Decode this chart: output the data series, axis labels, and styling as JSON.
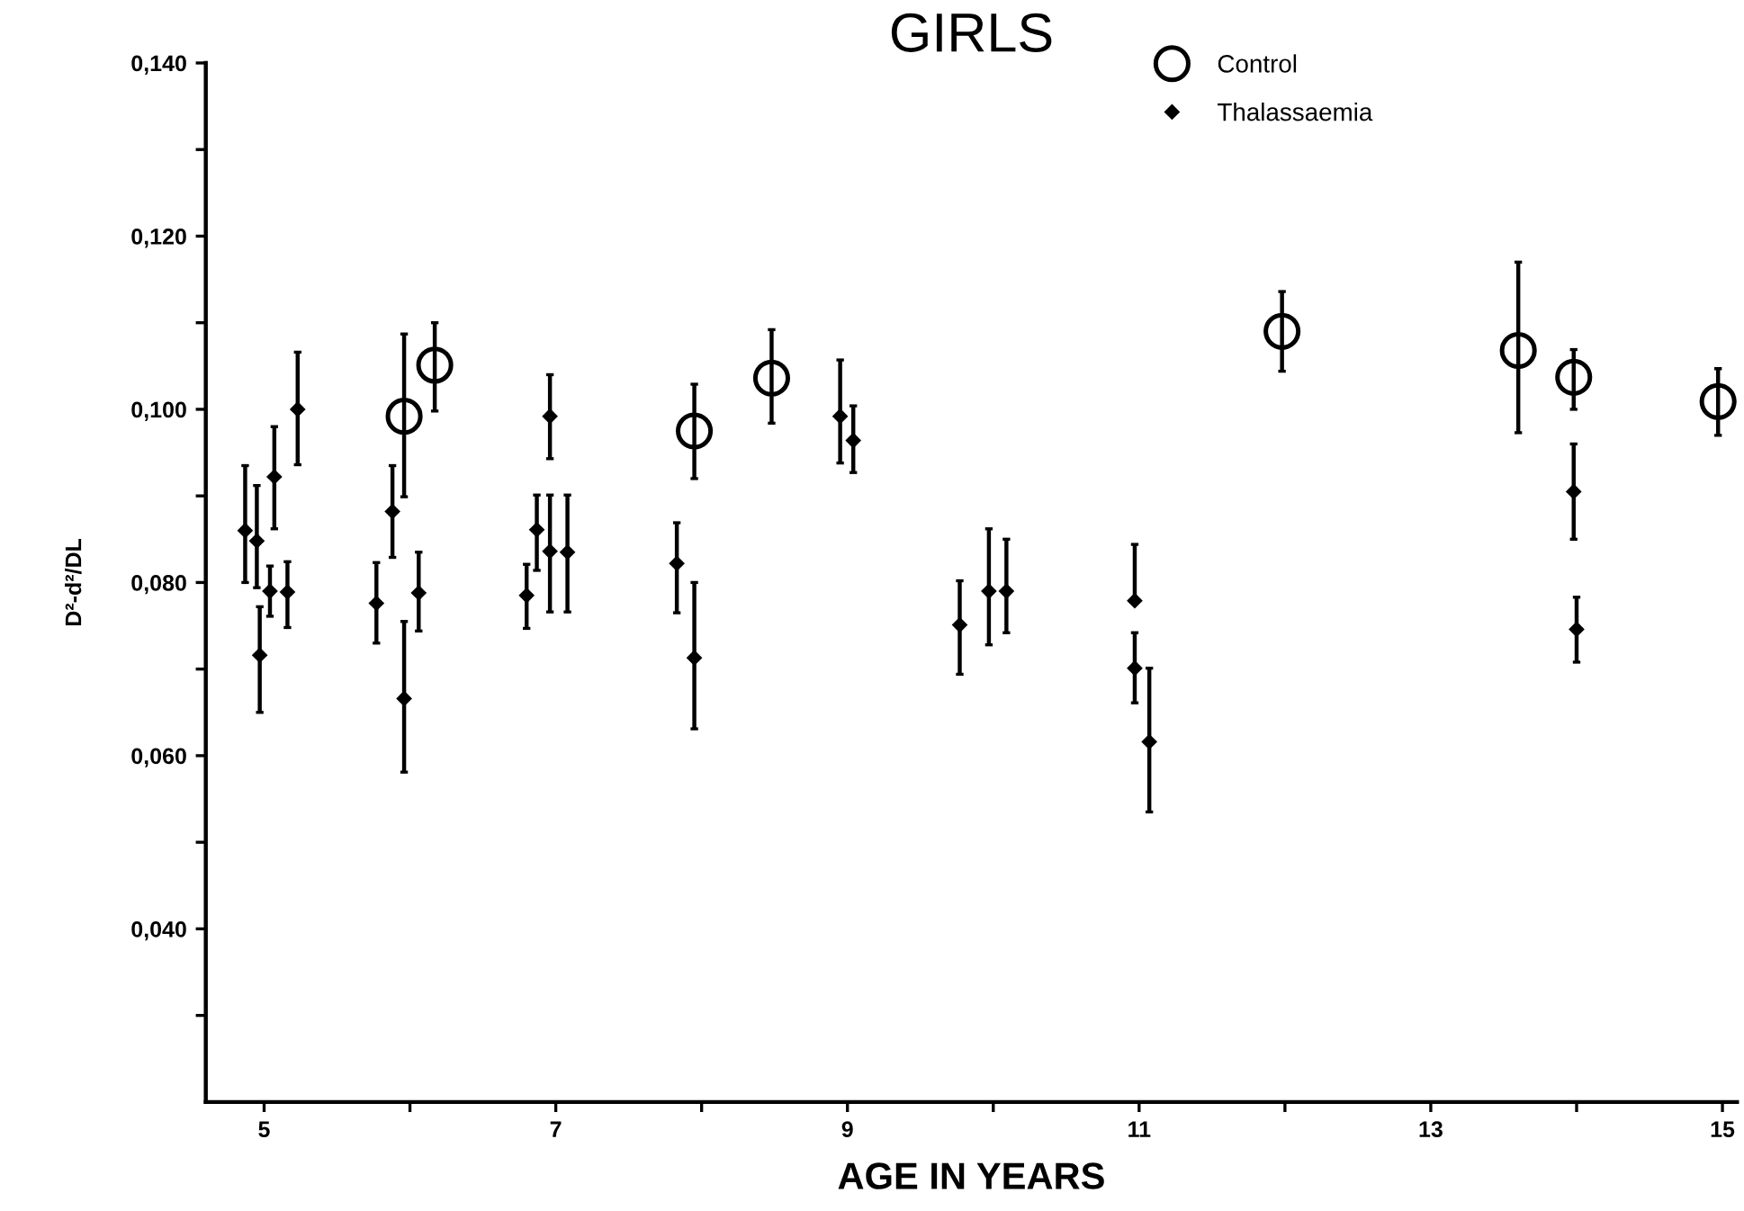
{
  "chart_data": {
    "type": "scatter",
    "title": "GIRLS",
    "xlabel": "AGE IN YEARS",
    "ylabel": "D²-d²/DL",
    "xlim": [
      4.6,
      15.1
    ],
    "ylim": [
      0.02,
      0.14
    ],
    "xticks": [
      5,
      {
        "value": 6,
        "label": null
      },
      7,
      {
        "value": 8,
        "label": null
      },
      9,
      {
        "value": 10,
        "label": null
      },
      11,
      {
        "value": 12,
        "label": null
      },
      13,
      {
        "value": 14,
        "label": null
      },
      15
    ],
    "yticks": [
      {
        "value": 0.03,
        "label": null
      },
      {
        "value": 0.04,
        "label": "0,040"
      },
      {
        "value": 0.05,
        "label": null
      },
      {
        "value": 0.06,
        "label": "0,060"
      },
      {
        "value": 0.07,
        "label": null
      },
      {
        "value": 0.08,
        "label": "0,080"
      },
      {
        "value": 0.09,
        "label": null
      },
      {
        "value": 0.1,
        "label": "0,100"
      },
      {
        "value": 0.11,
        "label": null
      },
      {
        "value": 0.12,
        "label": "0,120"
      },
      {
        "value": 0.13,
        "label": null
      },
      {
        "value": 0.14,
        "label": "0,140"
      }
    ],
    "grid": false,
    "legend": "top right",
    "series": [
      {
        "name": "Control",
        "color": "#000000",
        "marker": "circle",
        "x": [
          5.96,
          6.17,
          7.95,
          8.48,
          11.98,
          13.6,
          13.98,
          14.97
        ],
        "values": [
          0.0992,
          0.1051,
          0.0975,
          0.1036,
          0.109,
          0.1068,
          0.1037,
          0.1009
        ],
        "errors": [
          [
            0.0899,
            0.1087
          ],
          [
            0.0998,
            0.11
          ],
          [
            0.092,
            0.1029
          ],
          [
            0.0984,
            0.1092
          ],
          [
            0.1044,
            0.1136
          ],
          [
            0.0973,
            0.117
          ],
          [
            0.1,
            0.1069
          ],
          [
            0.097,
            0.1047
          ]
        ]
      },
      {
        "name": "Thalassaemia",
        "color": "#000000",
        "marker": "diamond",
        "x": [
          4.87,
          4.95,
          4.97,
          5.04,
          5.07,
          5.16,
          5.23,
          5.77,
          5.88,
          5.96,
          6.06,
          6.8,
          6.87,
          6.96,
          6.96,
          7.08,
          7.83,
          7.95,
          8.95,
          9.04,
          9.77,
          9.97,
          10.09,
          10.97,
          10.97,
          11.07,
          13.98,
          14.0
        ],
        "values": [
          0.086,
          0.0848,
          0.0716,
          0.079,
          0.0922,
          0.0789,
          0.1,
          0.0776,
          0.0882,
          0.0666,
          0.0788,
          0.0785,
          0.0861,
          0.0992,
          0.0836,
          0.0835,
          0.0822,
          0.0713,
          0.0992,
          0.0964,
          0.0751,
          0.079,
          0.079,
          0.0779,
          0.0701,
          0.0616,
          0.0905,
          0.0746
        ],
        "errors": [
          [
            0.08,
            0.0935
          ],
          [
            0.0794,
            0.0912
          ],
          [
            0.065,
            0.0772
          ],
          [
            0.0761,
            0.0819
          ],
          [
            0.0862,
            0.098
          ],
          [
            0.0748,
            0.0824
          ],
          [
            0.0936,
            0.1066
          ],
          [
            0.073,
            0.0823
          ],
          [
            0.0829,
            0.0935
          ],
          [
            0.0581,
            0.0755
          ],
          [
            0.0744,
            0.0835
          ],
          [
            0.0747,
            0.0821
          ],
          [
            0.0814,
            0.0901
          ],
          [
            0.0943,
            0.104
          ],
          [
            0.0766,
            0.0901
          ],
          [
            0.0766,
            0.0901
          ],
          [
            0.0765,
            0.0869
          ],
          [
            0.0631,
            0.08
          ],
          [
            0.0938,
            0.1057
          ],
          [
            0.0927,
            0.1004
          ],
          [
            0.0694,
            0.0802
          ],
          [
            0.0728,
            0.0862
          ],
          [
            0.0742,
            0.085
          ],
          [
            0.0779,
            0.0844
          ],
          [
            0.0661,
            0.0742
          ],
          [
            0.0535,
            0.0701
          ],
          [
            0.085,
            0.096
          ],
          [
            0.0708,
            0.0783
          ]
        ]
      }
    ]
  }
}
